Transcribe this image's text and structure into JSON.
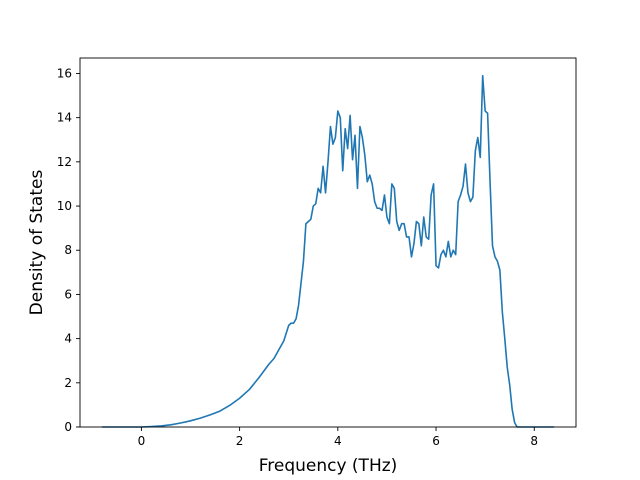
{
  "chart_data": {
    "type": "line",
    "title": "",
    "xlabel": "Frequency (THz)",
    "ylabel": "Density of States",
    "xlim": [
      -1.25,
      8.85
    ],
    "ylim": [
      0,
      16.7
    ],
    "grid": false,
    "line_color": "#1f77b4",
    "x_ticks": [
      0,
      2,
      4,
      6,
      8
    ],
    "y_ticks": [
      0,
      2,
      4,
      6,
      8,
      10,
      12,
      14,
      16
    ],
    "series": [
      {
        "x": [
          -0.8,
          -0.4,
          0.0,
          0.2,
          0.4,
          0.6,
          0.8,
          1.0,
          1.2,
          1.4,
          1.6,
          1.8,
          2.0,
          2.2,
          2.4,
          2.6,
          2.7,
          2.8,
          2.9,
          3.0,
          3.05,
          3.1,
          3.15,
          3.2,
          3.3,
          3.35,
          3.4,
          3.45,
          3.5,
          3.55,
          3.6,
          3.65,
          3.7,
          3.75,
          3.8,
          3.85,
          3.9,
          3.95,
          4.0,
          4.05,
          4.1,
          4.15,
          4.2,
          4.25,
          4.3,
          4.35,
          4.4,
          4.45,
          4.5,
          4.55,
          4.6,
          4.65,
          4.7,
          4.75,
          4.8,
          4.85,
          4.9,
          4.95,
          5.0,
          5.05,
          5.1,
          5.15,
          5.2,
          5.25,
          5.3,
          5.35,
          5.4,
          5.45,
          5.5,
          5.55,
          5.6,
          5.65,
          5.7,
          5.75,
          5.8,
          5.85,
          5.9,
          5.95,
          6.0,
          6.05,
          6.1,
          6.15,
          6.2,
          6.25,
          6.3,
          6.35,
          6.4,
          6.45,
          6.5,
          6.55,
          6.6,
          6.65,
          6.7,
          6.75,
          6.8,
          6.85,
          6.9,
          6.95,
          7.0,
          7.05,
          7.1,
          7.15,
          7.2,
          7.25,
          7.3,
          7.35,
          7.4,
          7.45,
          7.5,
          7.55,
          7.6,
          7.65,
          7.7,
          8.0,
          8.4
        ],
        "y": [
          0.0,
          0.0,
          0.0,
          0.02,
          0.05,
          0.1,
          0.18,
          0.28,
          0.4,
          0.55,
          0.72,
          0.98,
          1.3,
          1.7,
          2.25,
          2.85,
          3.1,
          3.5,
          3.9,
          4.6,
          4.7,
          4.7,
          4.9,
          5.5,
          7.5,
          9.2,
          9.3,
          9.4,
          10.0,
          10.1,
          10.8,
          10.6,
          11.8,
          10.6,
          12.0,
          13.6,
          12.8,
          13.1,
          14.3,
          14.0,
          11.6,
          13.5,
          12.6,
          14.1,
          12.1,
          13.2,
          10.8,
          13.6,
          13.1,
          12.3,
          11.1,
          11.4,
          11.0,
          10.2,
          9.9,
          9.9,
          9.8,
          10.5,
          9.5,
          9.2,
          11.0,
          10.8,
          9.3,
          8.9,
          9.2,
          9.2,
          8.6,
          8.6,
          7.7,
          8.3,
          9.3,
          9.2,
          8.2,
          9.5,
          8.6,
          8.5,
          10.5,
          11.0,
          7.3,
          7.2,
          7.8,
          8.0,
          7.7,
          8.4,
          7.7,
          8.0,
          7.8,
          10.2,
          10.5,
          10.9,
          11.9,
          10.6,
          10.2,
          10.4,
          12.5,
          13.1,
          12.2,
          15.9,
          14.3,
          14.2,
          11.1,
          8.2,
          7.7,
          7.5,
          7.1,
          5.2,
          4.0,
          2.7,
          1.9,
          0.8,
          0.2,
          0.0,
          0.0,
          0.0,
          0.0
        ]
      }
    ]
  }
}
